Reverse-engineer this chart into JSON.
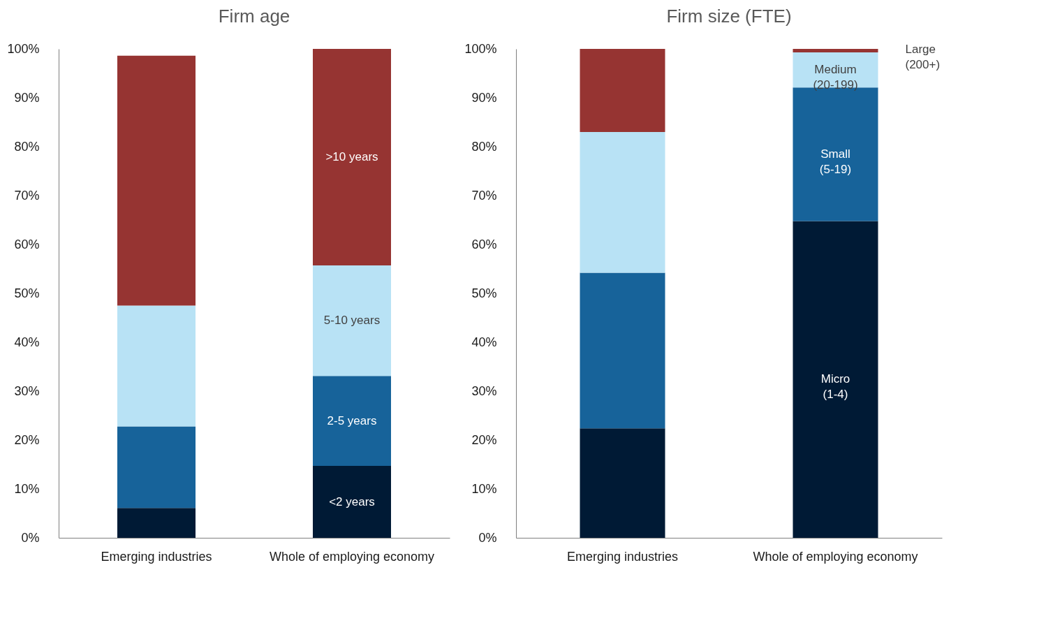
{
  "chart_data": [
    {
      "type": "bar",
      "title": "Firm age",
      "stacked": true,
      "categories": [
        "Emerging industries",
        "Whole of employing economy"
      ],
      "ylim": [
        0,
        100
      ],
      "yticks": [
        {
          "value": 0,
          "label": "0%"
        },
        {
          "value": 10,
          "label": "10%"
        },
        {
          "value": 20,
          "label": "20%"
        },
        {
          "value": 30,
          "label": "30%"
        },
        {
          "value": 40,
          "label": "40%"
        },
        {
          "value": 50,
          "label": "50%"
        },
        {
          "value": 60,
          "label": "60%"
        },
        {
          "value": 70,
          "label": "70%"
        },
        {
          "value": 80,
          "label": "80%"
        },
        {
          "value": 90,
          "label": "90%"
        },
        {
          "value": 100,
          "label": "100%"
        }
      ],
      "series": [
        {
          "name": "<2 years",
          "color": "#001a35",
          "values": [
            6.1,
            14.7
          ]
        },
        {
          "name": "2-5 years",
          "color": "#17639a",
          "values": [
            16.7,
            18.4
          ]
        },
        {
          "name": "5-10 years",
          "color": "#b8e2f5",
          "values": [
            24.7,
            22.6
          ]
        },
        {
          "name": ">10 years",
          "color": "#963432",
          "values": [
            51.1,
            44.3
          ]
        }
      ]
    },
    {
      "type": "bar",
      "title": "Firm size (FTE)",
      "stacked": true,
      "categories": [
        "Emerging industries",
        "Whole of employing economy"
      ],
      "ylim": [
        0,
        100
      ],
      "yticks": [
        {
          "value": 0,
          "label": "0%"
        },
        {
          "value": 10,
          "label": "10%"
        },
        {
          "value": 20,
          "label": "20%"
        },
        {
          "value": 30,
          "label": "30%"
        },
        {
          "value": 40,
          "label": "40%"
        },
        {
          "value": 50,
          "label": "50%"
        },
        {
          "value": 60,
          "label": "60%"
        },
        {
          "value": 70,
          "label": "70%"
        },
        {
          "value": 80,
          "label": "80%"
        },
        {
          "value": 90,
          "label": "90%"
        },
        {
          "value": 100,
          "label": "100%"
        }
      ],
      "series": [
        {
          "name": "Micro (1-4)",
          "color": "#001a35",
          "values": [
            22.4,
            64.8
          ]
        },
        {
          "name": "Small (5-19)",
          "color": "#17639a",
          "values": [
            31.8,
            27.3
          ]
        },
        {
          "name": "Medium (20-199)",
          "color": "#b8e2f5",
          "values": [
            28.8,
            7.2
          ]
        },
        {
          "name": "Large (200+)",
          "color": "#963432",
          "values": [
            17.0,
            0.7
          ]
        }
      ]
    }
  ]
}
